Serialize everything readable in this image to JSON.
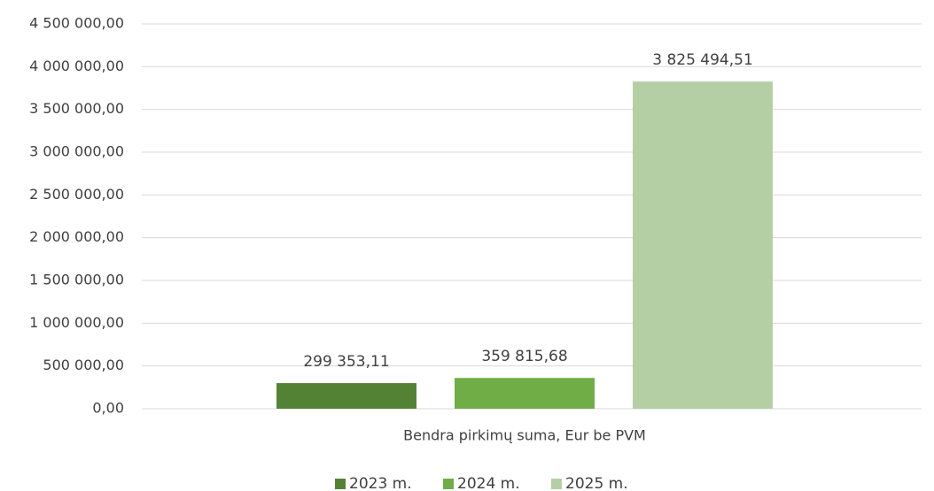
{
  "chart_data": {
    "type": "bar",
    "categories": [
      "Bendra pirkimų suma, Eur be PVM"
    ],
    "series": [
      {
        "name": "2023 m.",
        "color": "#548235",
        "values": [
          299353.11
        ],
        "value_labels": [
          "299 353,11"
        ]
      },
      {
        "name": "2024 m.",
        "color": "#70ad47",
        "values": [
          359815.68
        ],
        "value_labels": [
          "359 815,68"
        ]
      },
      {
        "name": "2025 m.",
        "color": "#b4cfa4",
        "values": [
          3825494.51
        ],
        "value_labels": [
          "3 825 494,51"
        ]
      }
    ],
    "ylim": [
      0,
      4500000
    ],
    "yticks": [
      {
        "value": 0,
        "label": "0,00"
      },
      {
        "value": 500000,
        "label": "500 000,00"
      },
      {
        "value": 1000000,
        "label": "1 000 000,00"
      },
      {
        "value": 1500000,
        "label": "1 500 000,00"
      },
      {
        "value": 2000000,
        "label": "2 000 000,00"
      },
      {
        "value": 2500000,
        "label": "2 500 000,00"
      },
      {
        "value": 3000000,
        "label": "3 000 000,00"
      },
      {
        "value": 3500000,
        "label": "3 500 000,00"
      },
      {
        "value": 4000000,
        "label": "4 000 000,00"
      },
      {
        "value": 4500000,
        "label": "4 500 000,00"
      }
    ],
    "grid": true,
    "legend": "bottom"
  }
}
